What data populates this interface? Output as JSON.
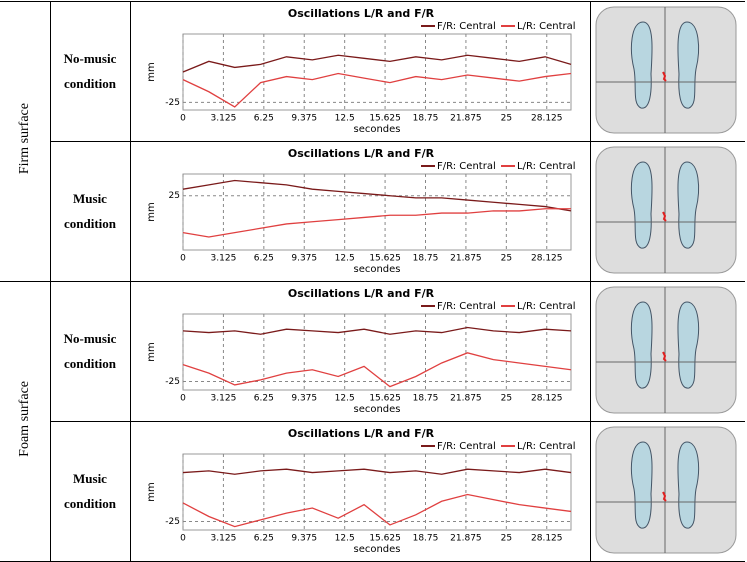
{
  "groups": [
    {
      "surface": "Firm surface",
      "rows": [
        {
          "condition": "No-music condition",
          "chart": {
            "type": "line",
            "title": "Oscillations L/R  and  F/R",
            "y_label": "mm",
            "x_label": "secondes",
            "x": [
              0,
              2,
              4,
              6,
              8,
              10,
              12,
              14,
              16,
              18,
              20,
              22,
              24,
              26,
              28,
              30
            ],
            "xlim": [
              0,
              30
            ],
            "xticks": [
              0,
              3.125,
              6.25,
              9.375,
              12.5,
              15.625,
              18.75,
              21.875,
              25,
              28.125
            ],
            "ylim": [
              -30,
              20
            ],
            "yticks": [
              -25
            ],
            "grid": true,
            "series": [
              {
                "name": "F/R: Central",
                "color": "#7a1a1a",
                "values": [
                  -5,
                  2,
                  -2,
                  0,
                  5,
                  3,
                  6,
                  4,
                  2,
                  5,
                  3,
                  6,
                  4,
                  2,
                  5,
                  0
                ]
              },
              {
                "name": "L/R: Central",
                "color": "#e04040",
                "values": [
                  -10,
                  -18,
                  -28,
                  -12,
                  -8,
                  -10,
                  -6,
                  -9,
                  -12,
                  -8,
                  -10,
                  -7,
                  -9,
                  -11,
                  -8,
                  -6
                ]
              }
            ]
          }
        },
        {
          "condition": "Music condition",
          "chart": {
            "type": "line",
            "title": "Oscillations L/R  and  F/R",
            "y_label": "mm",
            "x_label": "secondes",
            "x": [
              0,
              2,
              4,
              6,
              8,
              10,
              12,
              14,
              16,
              18,
              20,
              22,
              24,
              26,
              28,
              30
            ],
            "xlim": [
              0,
              30
            ],
            "xticks": [
              0,
              3.125,
              6.25,
              9.375,
              12.5,
              15.625,
              18.75,
              21.875,
              25,
              28.125
            ],
            "ylim": [
              0,
              35
            ],
            "yticks": [
              25
            ],
            "grid": true,
            "series": [
              {
                "name": "F/R: Central",
                "color": "#7a1a1a",
                "values": [
                  28,
                  30,
                  32,
                  31,
                  30,
                  28,
                  27,
                  26,
                  25,
                  24,
                  24,
                  23,
                  22,
                  21,
                  20,
                  18
                ]
              },
              {
                "name": "L/R: Central",
                "color": "#e04040",
                "values": [
                  8,
                  6,
                  8,
                  10,
                  12,
                  13,
                  14,
                  15,
                  16,
                  16,
                  17,
                  17,
                  18,
                  18,
                  19,
                  19
                ]
              }
            ]
          }
        }
      ]
    },
    {
      "surface": "Foam surface",
      "rows": [
        {
          "condition": "No-music condition",
          "chart": {
            "type": "line",
            "title": "Oscillations L/R  and  F/R",
            "y_label": "mm",
            "x_label": "secondes",
            "x": [
              0,
              2,
              4,
              6,
              8,
              10,
              12,
              14,
              16,
              18,
              20,
              22,
              24,
              26,
              28,
              30
            ],
            "xlim": [
              0,
              30
            ],
            "xticks": [
              0,
              3.125,
              6.25,
              9.375,
              12.5,
              15.625,
              18.75,
              21.875,
              25,
              28.125
            ],
            "ylim": [
              -30,
              15
            ],
            "yticks": [
              -25
            ],
            "grid": true,
            "series": [
              {
                "name": "F/R: Central",
                "color": "#7a1a1a",
                "values": [
                  5,
                  4,
                  5,
                  3,
                  6,
                  5,
                  4,
                  6,
                  3,
                  5,
                  4,
                  7,
                  5,
                  4,
                  6,
                  5
                ]
              },
              {
                "name": "L/R: Central",
                "color": "#e04040",
                "values": [
                  -15,
                  -20,
                  -27,
                  -24,
                  -20,
                  -18,
                  -22,
                  -16,
                  -28,
                  -22,
                  -14,
                  -8,
                  -12,
                  -14,
                  -16,
                  -18
                ]
              }
            ]
          }
        },
        {
          "condition": "Music condition",
          "chart": {
            "type": "line",
            "title": "Oscillations L/R  and  F/R",
            "y_label": "mm",
            "x_label": "secondes",
            "x": [
              0,
              2,
              4,
              6,
              8,
              10,
              12,
              14,
              16,
              18,
              20,
              22,
              24,
              26,
              28,
              30
            ],
            "xlim": [
              0,
              30
            ],
            "xticks": [
              0,
              3.125,
              6.25,
              9.375,
              12.5,
              15.625,
              18.75,
              21.875,
              25,
              28.125
            ],
            "ylim": [
              -30,
              15
            ],
            "yticks": [
              -25
            ],
            "grid": true,
            "series": [
              {
                "name": "F/R: Central",
                "color": "#7a1a1a",
                "values": [
                  4,
                  5,
                  3,
                  5,
                  6,
                  4,
                  5,
                  6,
                  4,
                  5,
                  3,
                  6,
                  5,
                  4,
                  6,
                  4
                ]
              },
              {
                "name": "L/R: Central",
                "color": "#e04040",
                "values": [
                  -14,
                  -22,
                  -28,
                  -24,
                  -20,
                  -17,
                  -23,
                  -15,
                  -27,
                  -21,
                  -13,
                  -9,
                  -12,
                  -15,
                  -17,
                  -19
                ]
              }
            ]
          }
        }
      ]
    }
  ]
}
